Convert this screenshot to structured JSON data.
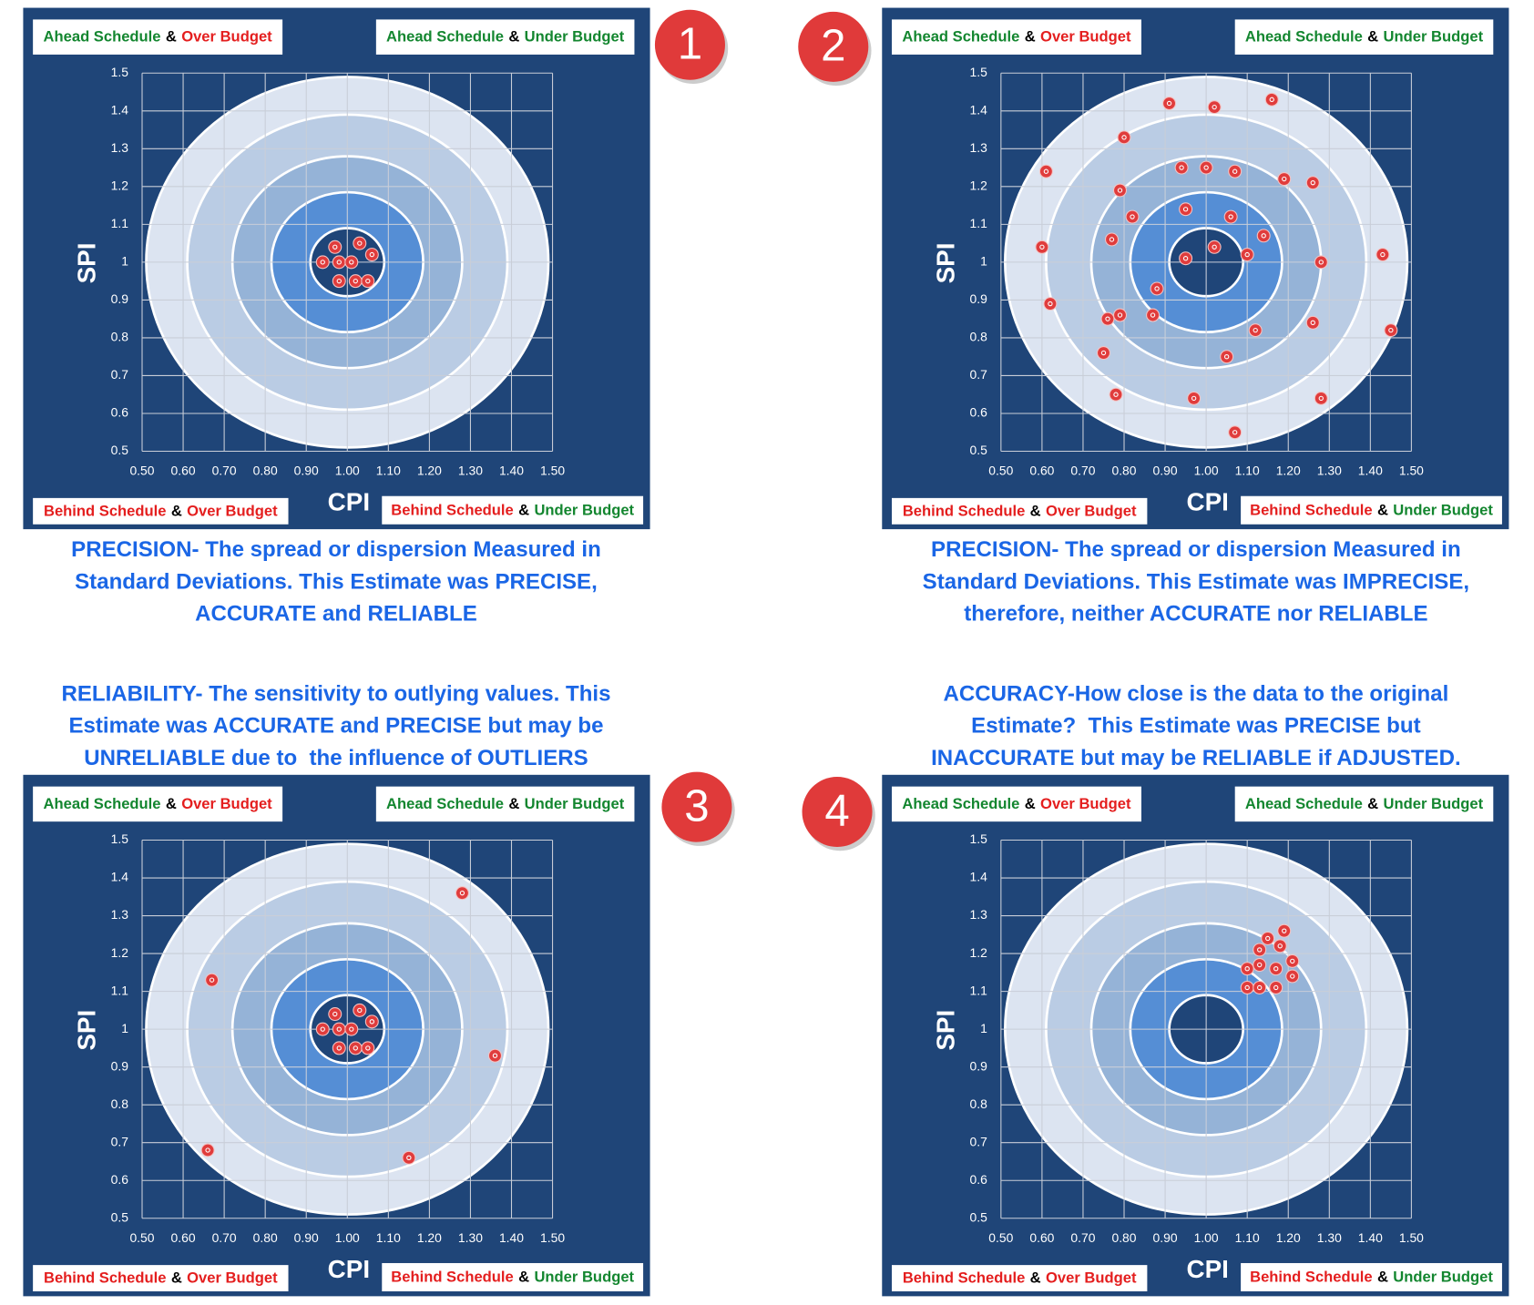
{
  "chart_data": [
    {
      "type": "scatter",
      "badge": "1",
      "xlabel": "CPI",
      "ylabel": "SPI",
      "color": "#e03c3c",
      "quadrant_labels": {
        "top_left": [
          {
            "text": "Ahead Schedule",
            "color": "#13862f"
          },
          {
            "text": "&",
            "color": "#000000"
          },
          {
            "text": "Over Budget",
            "color": "#e41e1e"
          }
        ],
        "top_right": [
          {
            "text": "Ahead Schedule",
            "color": "#13862f"
          },
          {
            "text": "&",
            "color": "#000000"
          },
          {
            "text": "Under Budget",
            "color": "#13862f"
          }
        ],
        "bottom_left": [
          {
            "text": "Behind Schedule",
            "color": "#e41e1e"
          },
          {
            "text": "&",
            "color": "#000000"
          },
          {
            "text": "Over Budget",
            "color": "#e41e1e"
          }
        ],
        "bottom_right": [
          {
            "text": "Behind Schedule",
            "color": "#e41e1e"
          },
          {
            "text": "&",
            "color": "#000000"
          },
          {
            "text": "Under Budget",
            "color": "#13862f"
          }
        ]
      },
      "caption": [
        "PRECISION- The spread or dispersion Measured in",
        "Standard Deviations. This Estimate was PRECISE,",
        "ACCURATE and RELIABLE"
      ],
      "x": [
        0.97,
        1.03,
        0.94,
        0.98,
        1.01,
        1.06,
        0.98,
        1.02,
        1.05
      ],
      "values": [
        1.04,
        1.05,
        1.0,
        1.0,
        1.0,
        1.02,
        0.95,
        0.95,
        0.95
      ],
      "xlim": [
        0.5,
        1.5
      ],
      "ylim": [
        0.5,
        1.5
      ],
      "xticks": [
        {
          "value": 0.5,
          "label": "0.50"
        },
        {
          "value": 0.6,
          "label": "0.60"
        },
        {
          "value": 0.7,
          "label": "0.70"
        },
        {
          "value": 0.8,
          "label": "0.80"
        },
        {
          "value": 0.9,
          "label": "0.90"
        },
        {
          "value": 1.0,
          "label": "1.00"
        },
        {
          "value": 1.1,
          "label": "1.10"
        },
        {
          "value": 1.2,
          "label": "1.20"
        },
        {
          "value": 1.3,
          "label": "1.30"
        },
        {
          "value": 1.4,
          "label": "1.40"
        },
        {
          "value": 1.5,
          "label": "1.50"
        }
      ],
      "yticks": [
        0.5,
        0.6,
        0.7,
        0.8,
        0.9,
        1,
        1.1,
        1.2,
        1.3,
        1.4,
        1.5
      ],
      "grid": true
    },
    {
      "type": "scatter",
      "badge": "2",
      "xlabel": "CPI",
      "ylabel": "SPI",
      "color": "#e03c3c",
      "quadrant_labels": {
        "top_left": [
          {
            "text": "Ahead Schedule",
            "color": "#13862f"
          },
          {
            "text": "&",
            "color": "#000000"
          },
          {
            "text": "Over Budget",
            "color": "#e41e1e"
          }
        ],
        "top_right": [
          {
            "text": "Ahead Schedule",
            "color": "#13862f"
          },
          {
            "text": "&",
            "color": "#000000"
          },
          {
            "text": "Under Budget",
            "color": "#13862f"
          }
        ],
        "bottom_left": [
          {
            "text": "Behind Schedule",
            "color": "#e41e1e"
          },
          {
            "text": "&",
            "color": "#000000"
          },
          {
            "text": "Over Budget",
            "color": "#e41e1e"
          }
        ],
        "bottom_right": [
          {
            "text": "Behind Schedule",
            "color": "#e41e1e"
          },
          {
            "text": "&",
            "color": "#000000"
          },
          {
            "text": "Under Budget",
            "color": "#13862f"
          }
        ]
      },
      "caption": [
        "PRECISION- The spread or dispersion Measured in",
        "Standard Deviations. This Estimate was IMPRECISE,",
        "therefore, neither ACCURATE nor RELIABLE"
      ],
      "x": [
        0.91,
        1.02,
        1.16,
        0.8,
        0.61,
        0.94,
        1.0,
        1.07,
        1.19,
        1.26,
        0.79,
        0.82,
        0.95,
        1.06,
        0.77,
        1.14,
        0.6,
        1.02,
        1.1,
        0.95,
        1.28,
        1.43,
        0.88,
        0.62,
        0.76,
        0.79,
        0.87,
        1.12,
        1.26,
        1.45,
        0.75,
        1.05,
        0.78,
        0.97,
        1.28,
        1.07
      ],
      "values": [
        1.42,
        1.41,
        1.43,
        1.33,
        1.24,
        1.25,
        1.25,
        1.24,
        1.22,
        1.21,
        1.19,
        1.12,
        1.14,
        1.12,
        1.06,
        1.07,
        1.04,
        1.04,
        1.02,
        1.01,
        1.0,
        1.02,
        0.93,
        0.89,
        0.85,
        0.86,
        0.86,
        0.82,
        0.84,
        0.82,
        0.76,
        0.75,
        0.65,
        0.64,
        0.64,
        0.55
      ],
      "xlim": [
        0.5,
        1.5
      ],
      "ylim": [
        0.5,
        1.5
      ],
      "xticks": [
        {
          "value": 0.5,
          "label": "0.50"
        },
        {
          "value": 0.6,
          "label": "0.60"
        },
        {
          "value": 0.7,
          "label": "0.70"
        },
        {
          "value": 0.8,
          "label": "0.80"
        },
        {
          "value": 0.9,
          "label": "0.90"
        },
        {
          "value": 1.0,
          "label": "1.00"
        },
        {
          "value": 1.1,
          "label": "1.10"
        },
        {
          "value": 1.2,
          "label": "1.20"
        },
        {
          "value": 1.3,
          "label": "1.30"
        },
        {
          "value": 1.4,
          "label": "1.40"
        },
        {
          "value": 1.5,
          "label": "1.50"
        }
      ],
      "yticks": [
        0.5,
        0.6,
        0.7,
        0.8,
        0.9,
        1,
        1.1,
        1.2,
        1.3,
        1.4,
        1.5
      ],
      "grid": true
    },
    {
      "type": "scatter",
      "badge": "3",
      "xlabel": "CPI",
      "ylabel": "SPI",
      "color": "#e03c3c",
      "quadrant_labels": {
        "top_left": [
          {
            "text": "Ahead Schedule",
            "color": "#13862f"
          },
          {
            "text": "&",
            "color": "#000000"
          },
          {
            "text": "Over Budget",
            "color": "#e41e1e"
          }
        ],
        "top_right": [
          {
            "text": "Ahead Schedule",
            "color": "#13862f"
          },
          {
            "text": "&",
            "color": "#000000"
          },
          {
            "text": "Under Budget",
            "color": "#13862f"
          }
        ],
        "bottom_left": [
          {
            "text": "Behind Schedule",
            "color": "#e41e1e"
          },
          {
            "text": "&",
            "color": "#000000"
          },
          {
            "text": "Over Budget",
            "color": "#e41e1e"
          }
        ],
        "bottom_right": [
          {
            "text": "Behind Schedule",
            "color": "#e41e1e"
          },
          {
            "text": "&",
            "color": "#000000"
          },
          {
            "text": "Under Budget",
            "color": "#13862f"
          }
        ]
      },
      "caption": [
        "RELIABILITY- The sensitivity to outlying values. This",
        "Estimate was ACCURATE and PRECISE but may be",
        "UNRELIABLE due to  the influence of OUTLIERS"
      ],
      "x": [
        0.97,
        1.03,
        0.94,
        0.98,
        1.01,
        1.06,
        0.98,
        1.02,
        1.05,
        1.28,
        0.67,
        1.36,
        0.66,
        1.15
      ],
      "values": [
        1.04,
        1.05,
        1.0,
        1.0,
        1.0,
        1.02,
        0.95,
        0.95,
        0.95,
        1.36,
        1.13,
        0.93,
        0.68,
        0.66
      ],
      "xlim": [
        0.5,
        1.5
      ],
      "ylim": [
        0.5,
        1.5
      ],
      "xticks": [
        {
          "value": 0.5,
          "label": "0.50"
        },
        {
          "value": 0.6,
          "label": "0.60"
        },
        {
          "value": 0.7,
          "label": "0.70"
        },
        {
          "value": 0.8,
          "label": "0.80"
        },
        {
          "value": 0.9,
          "label": "0.90"
        },
        {
          "value": 1.0,
          "label": "1.00"
        },
        {
          "value": 1.1,
          "label": "1.10"
        },
        {
          "value": 1.2,
          "label": "1.20"
        },
        {
          "value": 1.3,
          "label": "1.30"
        },
        {
          "value": 1.4,
          "label": "1.40"
        },
        {
          "value": 1.5,
          "label": "1.50"
        }
      ],
      "yticks": [
        0.5,
        0.6,
        0.7,
        0.8,
        0.9,
        1,
        1.1,
        1.2,
        1.3,
        1.4,
        1.5
      ],
      "grid": true
    },
    {
      "type": "scatter",
      "badge": "4",
      "xlabel": "CPI",
      "ylabel": "SPI",
      "color": "#e03c3c",
      "quadrant_labels": {
        "top_left": [
          {
            "text": "Ahead Schedule",
            "color": "#13862f"
          },
          {
            "text": "&",
            "color": "#000000"
          },
          {
            "text": "Over Budget",
            "color": "#e41e1e"
          }
        ],
        "top_right": [
          {
            "text": "Ahead Schedule",
            "color": "#13862f"
          },
          {
            "text": "&",
            "color": "#000000"
          },
          {
            "text": "Under Budget",
            "color": "#13862f"
          }
        ],
        "bottom_left": [
          {
            "text": "Behind Schedule",
            "color": "#e41e1e"
          },
          {
            "text": "&",
            "color": "#000000"
          },
          {
            "text": "Over Budget",
            "color": "#e41e1e"
          }
        ],
        "bottom_right": [
          {
            "text": "Behind Schedule",
            "color": "#e41e1e"
          },
          {
            "text": "&",
            "color": "#000000"
          },
          {
            "text": "Under Budget",
            "color": "#13862f"
          }
        ]
      },
      "caption": [
        "ACCURACY-How close is the data to the original",
        "Estimate?  This Estimate was PRECISE but",
        "INACCURATE but may be RELIABLE if ADJUSTED."
      ],
      "x": [
        1.19,
        1.15,
        1.13,
        1.18,
        1.21,
        1.1,
        1.13,
        1.17,
        1.21,
        1.1,
        1.13,
        1.17
      ],
      "values": [
        1.26,
        1.24,
        1.21,
        1.22,
        1.18,
        1.16,
        1.17,
        1.16,
        1.14,
        1.11,
        1.11,
        1.11
      ],
      "xlim": [
        0.5,
        1.5
      ],
      "ylim": [
        0.5,
        1.5
      ],
      "xticks": [
        {
          "value": 0.5,
          "label": "0.50"
        },
        {
          "value": 0.6,
          "label": "0.60"
        },
        {
          "value": 0.7,
          "label": "0.70"
        },
        {
          "value": 0.8,
          "label": "0.80"
        },
        {
          "value": 0.9,
          "label": "0.90"
        },
        {
          "value": 1.0,
          "label": "1.00"
        },
        {
          "value": 1.1,
          "label": "1.10"
        },
        {
          "value": 1.2,
          "label": "1.20"
        },
        {
          "value": 1.3,
          "label": "1.30"
        },
        {
          "value": 1.4,
          "label": "1.40"
        },
        {
          "value": 1.5,
          "label": "1.50"
        }
      ],
      "yticks": [
        0.5,
        0.6,
        0.7,
        0.8,
        0.9,
        1,
        1.1,
        1.2,
        1.3,
        1.4,
        1.5
      ],
      "grid": true
    }
  ]
}
